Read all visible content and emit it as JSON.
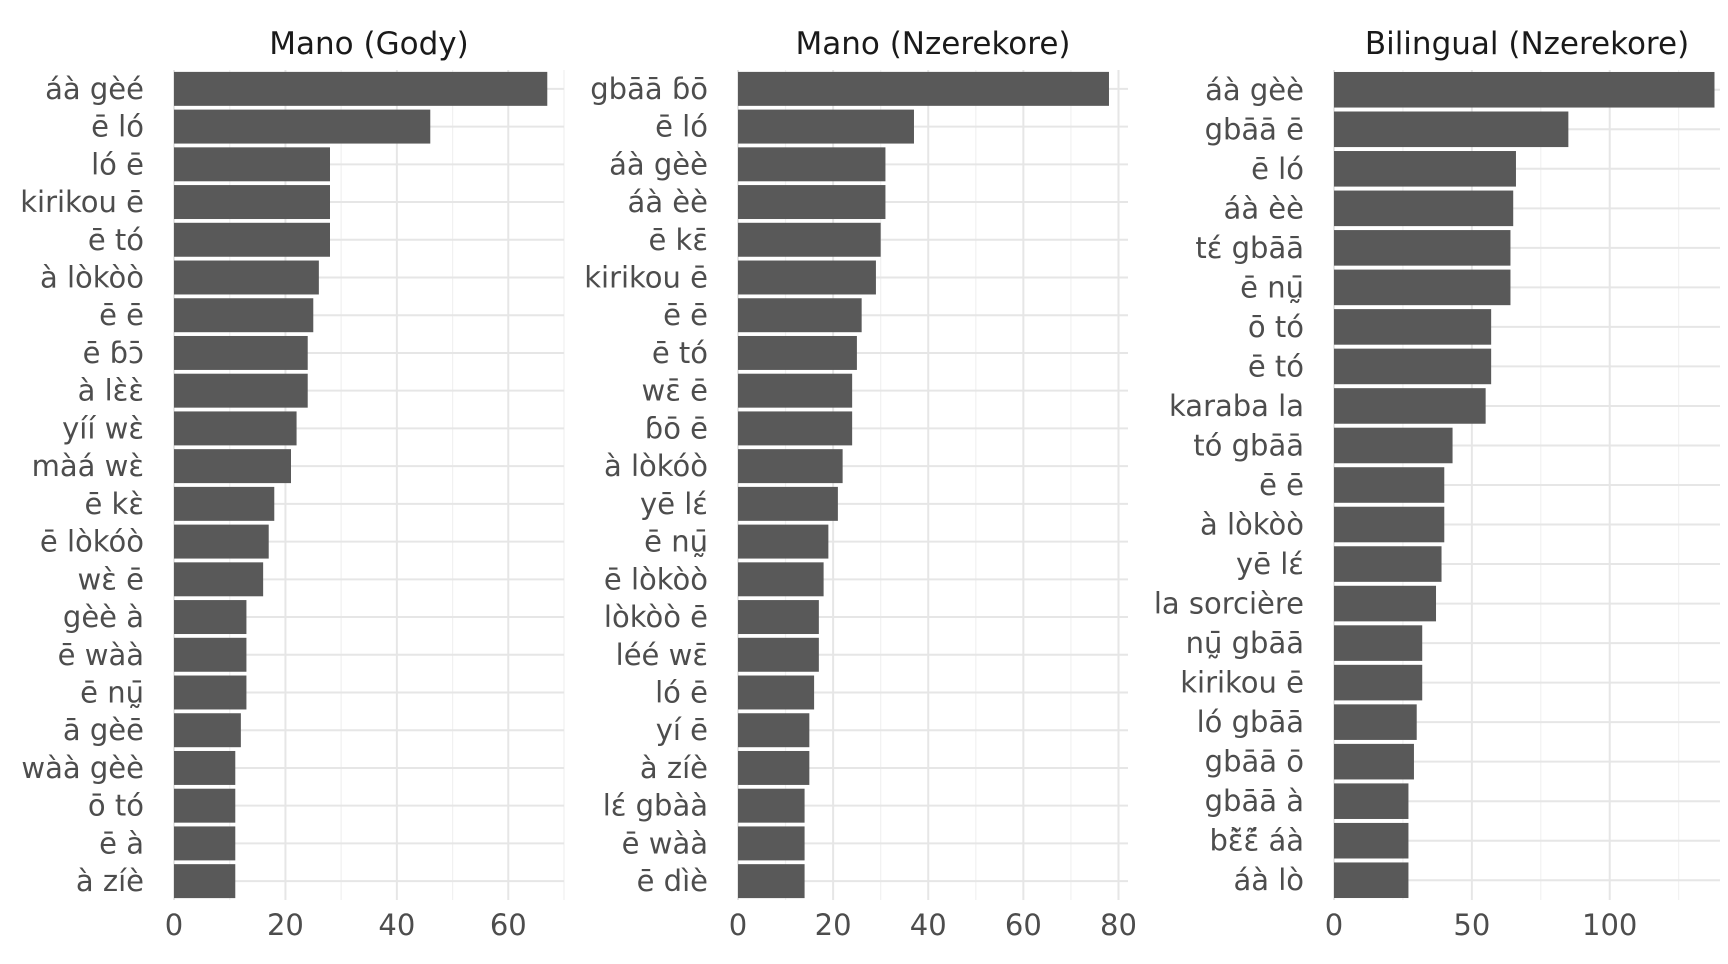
{
  "chart_data": [
    {
      "type": "bar",
      "orientation": "horizontal",
      "title": "Mano (Gody)",
      "xlim": [
        0,
        70
      ],
      "xticks": [
        0,
        20,
        40,
        60
      ],
      "categories": [
        "áà gèé",
        "ē ló",
        "ló ē",
        "kirikou ē",
        "ē tó",
        "à lòkòò",
        "ē ē",
        "ē ɓɔ̄",
        "à lɛ̀ɛ̀",
        "yíí wɛ̀",
        "màá wɛ̀",
        "ē kɛ̀",
        "ē lòkóò",
        "wɛ̀ ē",
        "gèè à",
        "ē wàà",
        "ē nṵ̄",
        "ā gèē",
        "wàà gèè",
        "ō tó",
        "ē à",
        "à zíè"
      ],
      "values": [
        67,
        46,
        28,
        28,
        28,
        26,
        25,
        24,
        24,
        22,
        21,
        18,
        17,
        16,
        13,
        13,
        13,
        12,
        11,
        11,
        11,
        11
      ]
    },
    {
      "type": "bar",
      "orientation": "horizontal",
      "title": "Mano (Nzerekore)",
      "xlim": [
        0,
        82
      ],
      "xticks": [
        0,
        20,
        40,
        60,
        80
      ],
      "categories": [
        "gbāā ɓō",
        "ē ló",
        "áà gèè",
        "áà èè",
        "ē kɛ̄",
        "kirikou ē",
        "ē ē",
        "ē tó",
        "wɛ̄ ē",
        "ɓō ē",
        "à lòkóò",
        "yē lɛ́",
        "ē nṵ̄",
        "ē lòkòò",
        "lòkòò ē",
        "léé wɛ̄",
        "ló ē",
        "yí ē",
        "à zíè",
        "lɛ́ gbàà",
        "ē wàà",
        "ē dìè"
      ],
      "values": [
        78,
        37,
        31,
        31,
        30,
        29,
        26,
        25,
        24,
        24,
        22,
        21,
        19,
        18,
        17,
        17,
        16,
        15,
        15,
        14,
        14,
        14
      ]
    },
    {
      "type": "bar",
      "orientation": "horizontal",
      "title": "Bilingual (Nzerekore)",
      "xlim": [
        0,
        140
      ],
      "xticks": [
        0,
        50,
        100
      ],
      "categories": [
        "áà gèè",
        "gbāā ē",
        "ē ló",
        "áà èè",
        "tɛ́ gbāā",
        "ē nṵ̄",
        "ō tó",
        "ē tó",
        "karaba la",
        "tó gbāā",
        "ē ē",
        "à lòkòò",
        "yē lɛ́",
        "la sorcière",
        "nṵ̄ gbāā",
        "kirikou ē",
        "ló gbāā",
        "gbāā ō",
        "gbāā à",
        "bɛ̃̀ɛ̃́ áà",
        "áà lò"
      ],
      "values": [
        138,
        85,
        66,
        65,
        64,
        64,
        57,
        57,
        55,
        43,
        40,
        40,
        39,
        37,
        32,
        32,
        30,
        29,
        27,
        27,
        27
      ]
    }
  ]
}
